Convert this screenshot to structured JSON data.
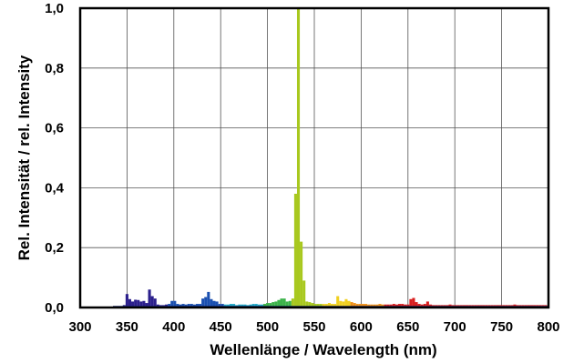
{
  "chart_data": {
    "type": "bar",
    "title": "",
    "xlabel": "Wellenlänge / Wavelength (nm)",
    "ylabel": "Rel. Intensität / rel. Intensity",
    "xlim": [
      300,
      800
    ],
    "ylim": [
      0,
      1.0
    ],
    "grid": true,
    "legend": "none",
    "x_ticks": [
      "300",
      "350",
      "400",
      "450",
      "500",
      "550",
      "600",
      "650",
      "700",
      "750",
      "800"
    ],
    "x_tick_values": [
      300,
      350,
      400,
      450,
      500,
      550,
      600,
      650,
      700,
      750,
      800
    ],
    "y_ticks": [
      "0,0",
      "0,2",
      "0,4",
      "0,6",
      "0,8",
      "1,0"
    ],
    "y_tick_values": [
      0,
      0.2,
      0.4,
      0.6,
      0.8,
      1.0
    ],
    "bin_width_nm": 3,
    "spectrum": [
      {
        "x": 347,
        "y": 0.008
      },
      {
        "x": 350,
        "y": 0.045
      },
      {
        "x": 353,
        "y": 0.028
      },
      {
        "x": 356,
        "y": 0.02
      },
      {
        "x": 359,
        "y": 0.026
      },
      {
        "x": 362,
        "y": 0.025
      },
      {
        "x": 365,
        "y": 0.02
      },
      {
        "x": 368,
        "y": 0.022
      },
      {
        "x": 371,
        "y": 0.015
      },
      {
        "x": 374,
        "y": 0.06
      },
      {
        "x": 377,
        "y": 0.038
      },
      {
        "x": 380,
        "y": 0.03
      },
      {
        "x": 383,
        "y": 0.01
      },
      {
        "x": 386,
        "y": 0.008
      },
      {
        "x": 389,
        "y": 0.008
      },
      {
        "x": 392,
        "y": 0.01
      },
      {
        "x": 395,
        "y": 0.012
      },
      {
        "x": 398,
        "y": 0.022
      },
      {
        "x": 401,
        "y": 0.022
      },
      {
        "x": 404,
        "y": 0.012
      },
      {
        "x": 407,
        "y": 0.01
      },
      {
        "x": 410,
        "y": 0.012
      },
      {
        "x": 413,
        "y": 0.01
      },
      {
        "x": 416,
        "y": 0.012
      },
      {
        "x": 419,
        "y": 0.012
      },
      {
        "x": 422,
        "y": 0.01
      },
      {
        "x": 425,
        "y": 0.012
      },
      {
        "x": 428,
        "y": 0.012
      },
      {
        "x": 431,
        "y": 0.03
      },
      {
        "x": 434,
        "y": 0.035
      },
      {
        "x": 437,
        "y": 0.052
      },
      {
        "x": 440,
        "y": 0.028
      },
      {
        "x": 443,
        "y": 0.022
      },
      {
        "x": 446,
        "y": 0.02
      },
      {
        "x": 449,
        "y": 0.012
      },
      {
        "x": 452,
        "y": 0.012
      },
      {
        "x": 455,
        "y": 0.01
      },
      {
        "x": 458,
        "y": 0.01
      },
      {
        "x": 461,
        "y": 0.012
      },
      {
        "x": 464,
        "y": 0.012
      },
      {
        "x": 467,
        "y": 0.008
      },
      {
        "x": 470,
        "y": 0.01
      },
      {
        "x": 473,
        "y": 0.01
      },
      {
        "x": 476,
        "y": 0.01
      },
      {
        "x": 479,
        "y": 0.008
      },
      {
        "x": 482,
        "y": 0.01
      },
      {
        "x": 485,
        "y": 0.012
      },
      {
        "x": 488,
        "y": 0.012
      },
      {
        "x": 491,
        "y": 0.01
      },
      {
        "x": 494,
        "y": 0.01
      },
      {
        "x": 497,
        "y": 0.012
      },
      {
        "x": 500,
        "y": 0.015
      },
      {
        "x": 503,
        "y": 0.015
      },
      {
        "x": 506,
        "y": 0.018
      },
      {
        "x": 509,
        "y": 0.02
      },
      {
        "x": 512,
        "y": 0.025
      },
      {
        "x": 515,
        "y": 0.03
      },
      {
        "x": 518,
        "y": 0.03
      },
      {
        "x": 521,
        "y": 0.02
      },
      {
        "x": 524,
        "y": 0.022
      },
      {
        "x": 527,
        "y": 0.03
      },
      {
        "x": 530,
        "y": 0.38
      },
      {
        "x": 533,
        "y": 1.0
      },
      {
        "x": 536,
        "y": 0.22
      },
      {
        "x": 539,
        "y": 0.09
      },
      {
        "x": 542,
        "y": 0.02
      },
      {
        "x": 545,
        "y": 0.018
      },
      {
        "x": 548,
        "y": 0.015
      },
      {
        "x": 551,
        "y": 0.012
      },
      {
        "x": 554,
        "y": 0.012
      },
      {
        "x": 557,
        "y": 0.012
      },
      {
        "x": 560,
        "y": 0.012
      },
      {
        "x": 563,
        "y": 0.012
      },
      {
        "x": 566,
        "y": 0.015
      },
      {
        "x": 569,
        "y": 0.012
      },
      {
        "x": 572,
        "y": 0.012
      },
      {
        "x": 575,
        "y": 0.038
      },
      {
        "x": 578,
        "y": 0.022
      },
      {
        "x": 581,
        "y": 0.02
      },
      {
        "x": 584,
        "y": 0.028
      },
      {
        "x": 587,
        "y": 0.022
      },
      {
        "x": 590,
        "y": 0.018
      },
      {
        "x": 593,
        "y": 0.015
      },
      {
        "x": 596,
        "y": 0.012
      },
      {
        "x": 599,
        "y": 0.012
      },
      {
        "x": 602,
        "y": 0.012
      },
      {
        "x": 605,
        "y": 0.012
      },
      {
        "x": 608,
        "y": 0.01
      },
      {
        "x": 611,
        "y": 0.01
      },
      {
        "x": 614,
        "y": 0.01
      },
      {
        "x": 617,
        "y": 0.01
      },
      {
        "x": 620,
        "y": 0.012
      },
      {
        "x": 623,
        "y": 0.01
      },
      {
        "x": 626,
        "y": 0.01
      },
      {
        "x": 629,
        "y": 0.01
      },
      {
        "x": 632,
        "y": 0.01
      },
      {
        "x": 635,
        "y": 0.012
      },
      {
        "x": 638,
        "y": 0.01
      },
      {
        "x": 641,
        "y": 0.012
      },
      {
        "x": 644,
        "y": 0.012
      },
      {
        "x": 647,
        "y": 0.01
      },
      {
        "x": 650,
        "y": 0.01
      },
      {
        "x": 653,
        "y": 0.028
      },
      {
        "x": 656,
        "y": 0.032
      },
      {
        "x": 659,
        "y": 0.018
      },
      {
        "x": 662,
        "y": 0.012
      },
      {
        "x": 665,
        "y": 0.01
      },
      {
        "x": 668,
        "y": 0.012
      },
      {
        "x": 671,
        "y": 0.02
      },
      {
        "x": 674,
        "y": 0.01
      },
      {
        "x": 677,
        "y": 0.008
      },
      {
        "x": 680,
        "y": 0.008
      },
      {
        "x": 683,
        "y": 0.008
      },
      {
        "x": 686,
        "y": 0.008
      },
      {
        "x": 689,
        "y": 0.008
      },
      {
        "x": 692,
        "y": 0.008
      },
      {
        "x": 695,
        "y": 0.01
      },
      {
        "x": 698,
        "y": 0.008
      },
      {
        "x": 701,
        "y": 0.008
      },
      {
        "x": 704,
        "y": 0.008
      },
      {
        "x": 707,
        "y": 0.008
      },
      {
        "x": 710,
        "y": 0.008
      },
      {
        "x": 713,
        "y": 0.008
      },
      {
        "x": 716,
        "y": 0.008
      },
      {
        "x": 719,
        "y": 0.008
      },
      {
        "x": 722,
        "y": 0.008
      },
      {
        "x": 725,
        "y": 0.008
      },
      {
        "x": 728,
        "y": 0.008
      },
      {
        "x": 731,
        "y": 0.008
      },
      {
        "x": 734,
        "y": 0.008
      },
      {
        "x": 737,
        "y": 0.008
      },
      {
        "x": 740,
        "y": 0.008
      },
      {
        "x": 743,
        "y": 0.008
      },
      {
        "x": 746,
        "y": 0.008
      },
      {
        "x": 749,
        "y": 0.008
      },
      {
        "x": 752,
        "y": 0.008
      },
      {
        "x": 755,
        "y": 0.008
      },
      {
        "x": 758,
        "y": 0.008
      },
      {
        "x": 761,
        "y": 0.008
      },
      {
        "x": 764,
        "y": 0.01
      },
      {
        "x": 767,
        "y": 0.008
      },
      {
        "x": 770,
        "y": 0.008
      },
      {
        "x": 773,
        "y": 0.008
      },
      {
        "x": 776,
        "y": 0.008
      },
      {
        "x": 779,
        "y": 0.008
      },
      {
        "x": 782,
        "y": 0.008
      },
      {
        "x": 785,
        "y": 0.008
      },
      {
        "x": 788,
        "y": 0.008
      },
      {
        "x": 791,
        "y": 0.008
      },
      {
        "x": 794,
        "y": 0.008
      },
      {
        "x": 797,
        "y": 0.008
      }
    ],
    "baseline_range": [
      335,
      800
    ],
    "colors": {
      "violet": "#2b1f8c",
      "blue": "#1a4fb0",
      "cyan": "#20a8c8",
      "green": "#3cb34a",
      "lime": "#a8c81e",
      "yellow": "#f0d020",
      "orange": "#f09018",
      "red": "#d81e1e",
      "baseline": "#1a2a6c",
      "frame": "#000000",
      "grid": "#555555"
    }
  }
}
